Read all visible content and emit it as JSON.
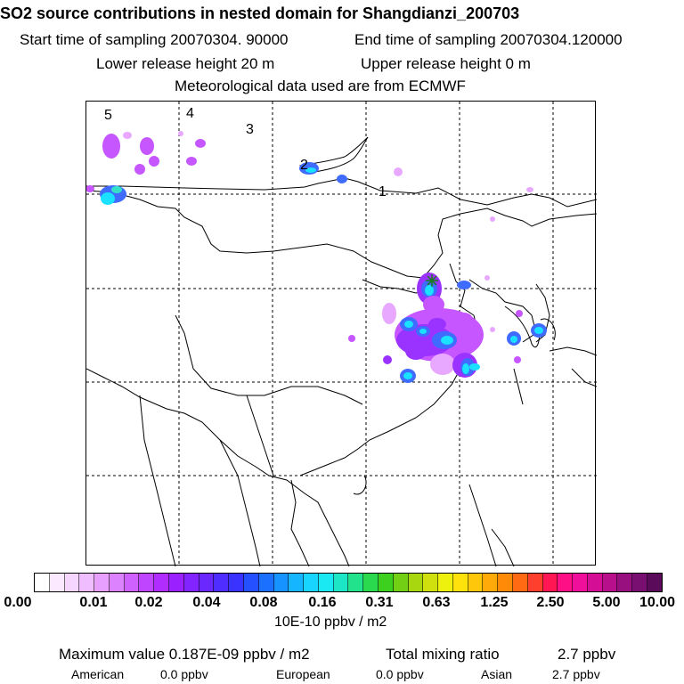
{
  "title": "SO2 source contributions in nested domain for Shangdianzi_200703",
  "header": {
    "start_label": "Start time of sampling 20070304. 90000",
    "end_label": "End time of sampling 20070304.120000",
    "lower_release": "Lower release height   20 m",
    "upper_release": "Upper release height    0 m",
    "met_data": "Meteorological data used are from ECMWF"
  },
  "map": {
    "region_labels": [
      "1",
      "2",
      "3",
      "4",
      "5"
    ],
    "receptor_marker": "receptor-star",
    "plume_colors": {
      "light": "#e9a8ff",
      "mid": "#c656ff",
      "purple": "#9a33ff",
      "blue": "#3f6bff",
      "cyan": "#19e1ff",
      "teal": "#35e0c8"
    }
  },
  "colorbar": {
    "colors": [
      "#ffffff",
      "#fbeaff",
      "#f6d6ff",
      "#f0bdff",
      "#e7a0ff",
      "#dc82ff",
      "#cf62ff",
      "#c045ff",
      "#b02cff",
      "#9b20ff",
      "#8224ff",
      "#6a28ff",
      "#4f2cff",
      "#3a33ff",
      "#2550ff",
      "#1c70ff",
      "#1793ff",
      "#16b5ff",
      "#17d5ff",
      "#1ae8f3",
      "#1de6c7",
      "#22e28c",
      "#2ad94e",
      "#3ed01e",
      "#73cf13",
      "#a8d60f",
      "#cfe00e",
      "#eef00d",
      "#ffe10b",
      "#ffc709",
      "#ffaa08",
      "#ff8a08",
      "#ff6a12",
      "#ff3f2d",
      "#ff1652",
      "#ff0f85",
      "#f00f9a",
      "#d40f95",
      "#b80f8c",
      "#981080",
      "#7a0f72",
      "#5a0c5a"
    ],
    "tick_labels": [
      "0.00",
      "0.01",
      "0.02",
      "0.04",
      "0.08",
      "0.16",
      "0.31",
      "0.63",
      "1.25",
      "2.50",
      "5.00",
      "10.00"
    ],
    "units": "10E-10 ppbv / m2"
  },
  "footer": {
    "max_value": "Maximum value  0.187E-09 ppbv / m2",
    "total_mixing": "Total mixing ratio",
    "total_value": "2.7 ppbv",
    "american_label": "American",
    "american_value": "0.0 ppbv",
    "european_label": "European",
    "european_value": "0.0 ppbv",
    "asian_label": "Asian",
    "asian_value": "2.7 ppbv"
  }
}
